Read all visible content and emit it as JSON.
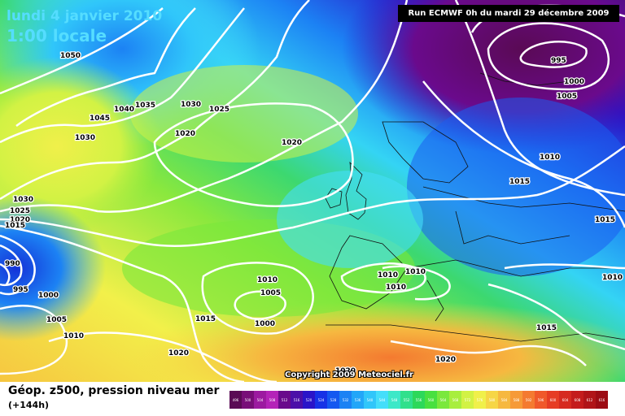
{
  "header": {
    "date": "lundi 4 janvier 2010",
    "time": "1:00 locale",
    "run": "Run ECMWF 0h du mardi 29 décembre 2009"
  },
  "copyright": "Copyright 2009 Meteociel.fr",
  "legend": {
    "title": "Géop. z500, pression niveau mer",
    "forecast": "(+144h)",
    "scale": [
      "496",
      "500",
      "504",
      "508",
      "512",
      "516",
      "520",
      "524",
      "528",
      "532",
      "536",
      "540",
      "544",
      "548",
      "552",
      "556",
      "560",
      "564",
      "568",
      "572",
      "576",
      "580",
      "584",
      "588",
      "592",
      "596",
      "600",
      "604",
      "608",
      "612",
      "616"
    ],
    "colors": [
      "#5a0a55",
      "#780e78",
      "#9c1aa0",
      "#b423b8",
      "#6a0a8c",
      "#4b0fa8",
      "#2a14c8",
      "#1632e6",
      "#1458f0",
      "#1c82f4",
      "#22a6f8",
      "#30c6fa",
      "#44defa",
      "#3ce8c8",
      "#30e08c",
      "#2cd85a",
      "#48e040",
      "#7ae83c",
      "#a8ee3e",
      "#d2f244",
      "#f0f04a",
      "#f6d646",
      "#f6b840",
      "#f69a38",
      "#f47a30",
      "#f0582a",
      "#e63c24",
      "#d62a20",
      "#c41c1c",
      "#b01418",
      "#9c0c14"
    ]
  },
  "isobars": [
    {
      "value": "1050"
    },
    {
      "value": "1045"
    },
    {
      "value": "1040"
    },
    {
      "value": "1035"
    },
    {
      "value": "1030"
    },
    {
      "value": "1025"
    },
    {
      "value": "1020"
    },
    {
      "value": "1030"
    },
    {
      "value": "1020"
    },
    {
      "value": "1030"
    },
    {
      "value": "1025"
    },
    {
      "value": "1020"
    },
    {
      "value": "1015"
    },
    {
      "value": "990"
    },
    {
      "value": "995"
    },
    {
      "value": "1000"
    },
    {
      "value": "1005"
    },
    {
      "value": "1010"
    },
    {
      "value": "1010"
    },
    {
      "value": "1005"
    },
    {
      "value": "1000"
    },
    {
      "value": "1015"
    },
    {
      "value": "1020"
    },
    {
      "value": "1010"
    },
    {
      "value": "1010"
    },
    {
      "value": "1010"
    },
    {
      "value": "1020"
    },
    {
      "value": "1020"
    },
    {
      "value": "1015"
    },
    {
      "value": "1015"
    },
    {
      "value": "1010"
    },
    {
      "value": "1015"
    },
    {
      "value": "1010"
    },
    {
      "value": "995"
    },
    {
      "value": "1000"
    },
    {
      "value": "1005"
    }
  ]
}
